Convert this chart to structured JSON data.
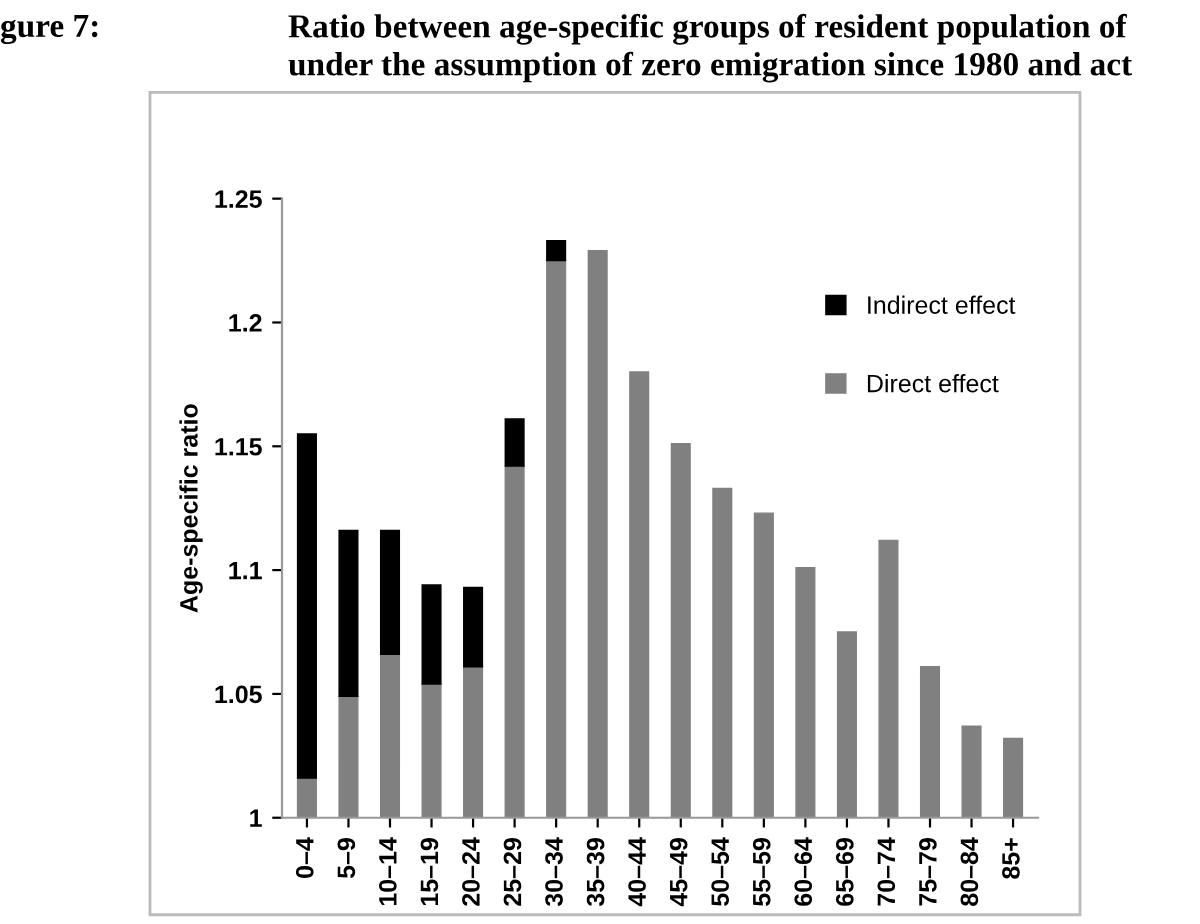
{
  "chart_data": {
    "type": "bar",
    "title": "Ratio between age-specific groups of resident population of\nunder the assumption of zero emigration since 1980 and act",
    "annotations": [
      "gure 7:"
    ],
    "ylabel": "Age-specific ratio",
    "categories": [
      "0–4",
      "5–9",
      "10–14",
      "15–19",
      "20–24",
      "25–29",
      "30–34",
      "35–39",
      "40–44",
      "45–49",
      "50–54",
      "55–59",
      "60–64",
      "65–69",
      "70–74",
      "75–79",
      "80–84",
      "85+"
    ],
    "series": [
      {
        "name": "Direct effect",
        "color": "#808080",
        "values": [
          1.016,
          1.049,
          1.066,
          1.054,
          1.061,
          1.142,
          1.225,
          1.229,
          1.18,
          1.151,
          1.133,
          1.123,
          1.101,
          1.075,
          1.112,
          1.061,
          1.037,
          1.032
        ]
      },
      {
        "name": "Indirect effect",
        "color": "#000000",
        "base": [
          1.016,
          1.049,
          1.066,
          1.054,
          1.061,
          1.142,
          1.225,
          null,
          null,
          null,
          null,
          null,
          null,
          null,
          null,
          null,
          null,
          null
        ],
        "values": [
          0.139,
          0.067,
          0.05,
          0.04,
          0.032,
          0.019,
          0.008,
          null,
          null,
          null,
          null,
          null,
          null,
          null,
          null,
          null,
          null,
          null
        ]
      }
    ],
    "ylim": [
      1,
      1.25
    ],
    "yticks": [
      1,
      1.05,
      1.1,
      1.15,
      1.2,
      1.25
    ],
    "legend": "upper right",
    "grid": false
  }
}
